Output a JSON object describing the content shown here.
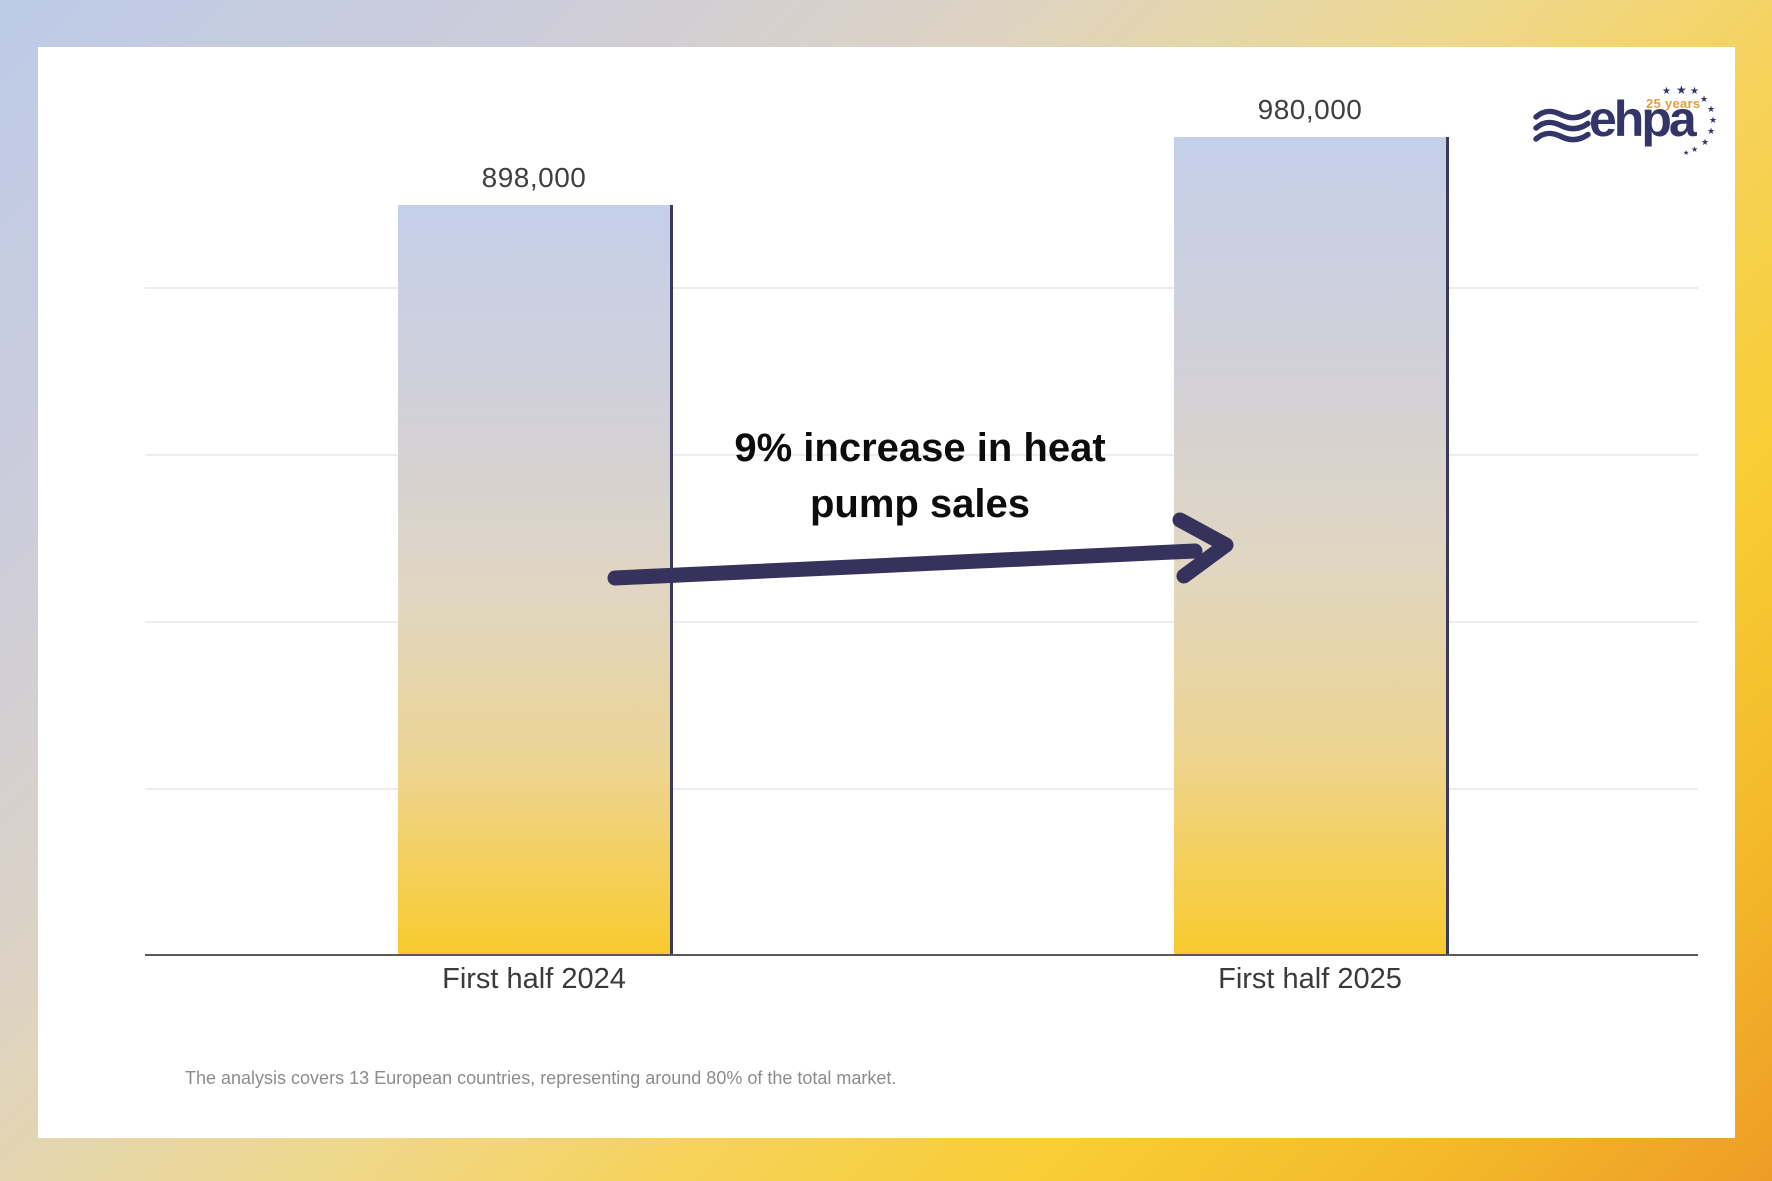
{
  "chart_data": {
    "type": "bar",
    "title": "",
    "xlabel": "",
    "ylabel": "",
    "categories": [
      "First half 2024",
      "First half 2025"
    ],
    "values": [
      898000,
      980000
    ],
    "value_labels": [
      "898,000",
      "980,000"
    ],
    "ylim": [
      0,
      1000000
    ],
    "gridline_values": [
      200000,
      400000,
      600000,
      800000
    ],
    "grid": "horizontal, no tick labels",
    "legend": "none",
    "annotation": "9% increase in heat pump sales"
  },
  "annotation": {
    "line1": "9% increase in heat",
    "line2": "pump sales"
  },
  "footnote": {
    "text": "The analysis covers 13 European countries, representing around 80% of the total market."
  },
  "logo": {
    "name": "ehpa",
    "badge": "25 years"
  },
  "colors": {
    "arrow": "#37325c",
    "bar_border": "#3b3a5e",
    "axis_line": "#59595c",
    "gridline": "#ededf0",
    "value_label_text": "#3f3f3f",
    "annotation_text": "#0c0c0c",
    "footnote_text": "#8c8c8c",
    "logo_navy": "#333569",
    "logo_gold": "#e2a03a",
    "bar_gradient": [
      [
        "#c4cfe9",
        0
      ],
      [
        "#d2d0d8",
        28
      ],
      [
        "#e0d6c2",
        52
      ],
      [
        "#edd492",
        75
      ],
      [
        "#f5cf55",
        90
      ],
      [
        "#f8ca2e",
        100
      ]
    ],
    "frame_gradient": [
      [
        "#bdcbe8",
        0
      ],
      [
        "#ccccdb",
        18
      ],
      [
        "#ddd3c4",
        34
      ],
      [
        "#eed88f",
        50
      ],
      [
        "#f6d25c",
        62
      ],
      [
        "#f8cd35",
        75
      ],
      [
        "#f4bb2b",
        87
      ],
      [
        "#ee9c26",
        100
      ]
    ]
  }
}
